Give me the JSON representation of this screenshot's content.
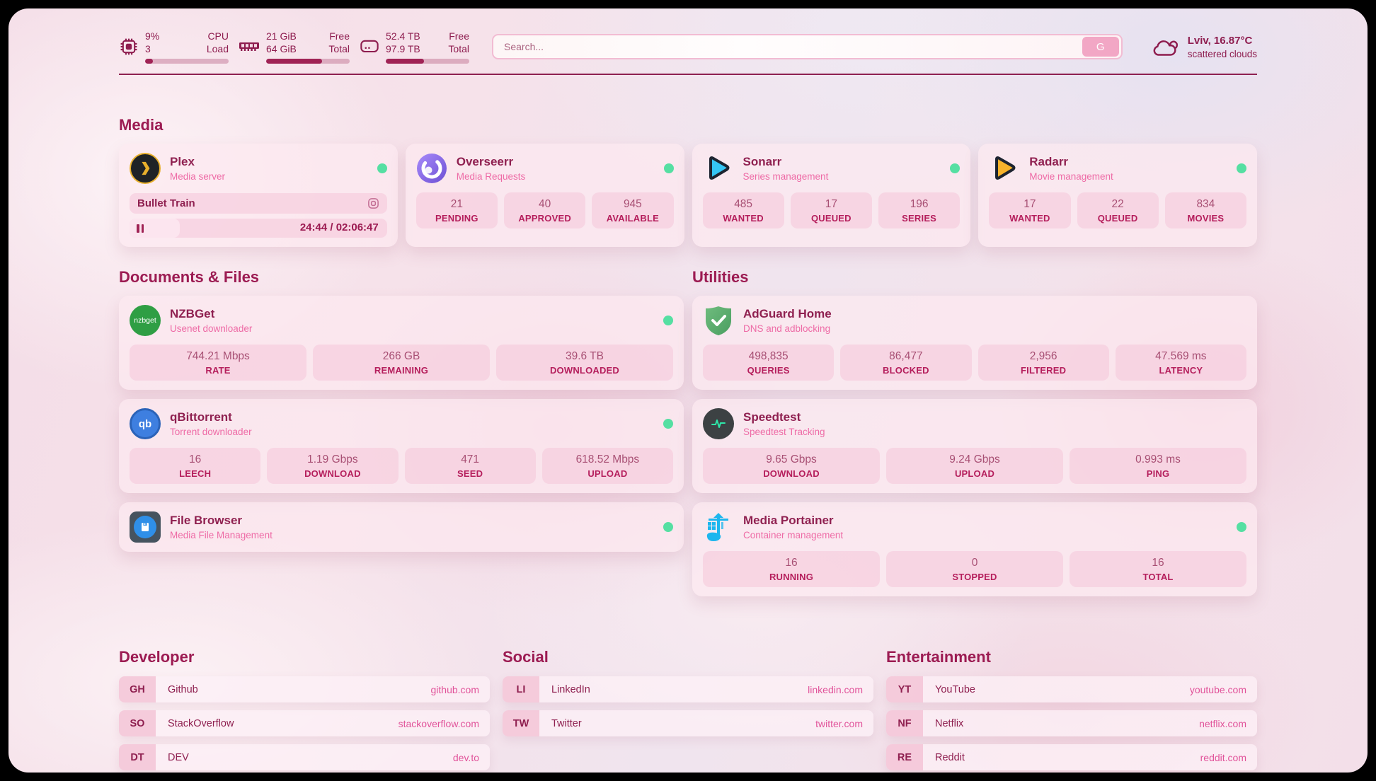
{
  "header": {
    "cpu": {
      "value": "9%",
      "secondary": "3",
      "label_top": "CPU",
      "label_bottom": "Load",
      "fill_pct": 9
    },
    "ram": {
      "value": "21 GiB",
      "secondary": "64 GiB",
      "label_top": "Free",
      "label_bottom": "Total",
      "fill_pct": 67
    },
    "disk": {
      "value": "52.4 TB",
      "secondary": "97.9 TB",
      "label_top": "Free",
      "label_bottom": "Total",
      "fill_pct": 46
    },
    "search": {
      "placeholder": "Search...",
      "button": "G"
    },
    "weather": {
      "location": "Lviv, 16.87°C",
      "condition": "scattered clouds"
    }
  },
  "sections": {
    "media": {
      "title": "Media"
    },
    "documents": {
      "title": "Documents & Files"
    },
    "utilities": {
      "title": "Utilities"
    },
    "developer": {
      "title": "Developer"
    },
    "social": {
      "title": "Social"
    },
    "entertainment": {
      "title": "Entertainment"
    }
  },
  "apps": {
    "plex": {
      "name": "Plex",
      "desc": "Media server",
      "now_playing": "Bullet Train",
      "time": "24:44 / 02:06:47",
      "progress_pct": 19.5
    },
    "overseerr": {
      "name": "Overseerr",
      "desc": "Media Requests",
      "stats": [
        {
          "value": "21",
          "label": "PENDING"
        },
        {
          "value": "40",
          "label": "APPROVED"
        },
        {
          "value": "945",
          "label": "AVAILABLE"
        }
      ]
    },
    "sonarr": {
      "name": "Sonarr",
      "desc": "Series management",
      "stats": [
        {
          "value": "485",
          "label": "WANTED"
        },
        {
          "value": "17",
          "label": "QUEUED"
        },
        {
          "value": "196",
          "label": "SERIES"
        }
      ]
    },
    "radarr": {
      "name": "Radarr",
      "desc": "Movie management",
      "stats": [
        {
          "value": "17",
          "label": "WANTED"
        },
        {
          "value": "22",
          "label": "QUEUED"
        },
        {
          "value": "834",
          "label": "MOVIES"
        }
      ]
    },
    "nzbget": {
      "name": "NZBGet",
      "desc": "Usenet downloader",
      "stats": [
        {
          "value": "744.21 Mbps",
          "label": "RATE"
        },
        {
          "value": "266 GB",
          "label": "REMAINING"
        },
        {
          "value": "39.6 TB",
          "label": "DOWNLOADED"
        }
      ]
    },
    "qbittorrent": {
      "name": "qBittorrent",
      "desc": "Torrent downloader",
      "stats": [
        {
          "value": "16",
          "label": "LEECH"
        },
        {
          "value": "1.19 Gbps",
          "label": "DOWNLOAD"
        },
        {
          "value": "471",
          "label": "SEED"
        },
        {
          "value": "618.52 Mbps",
          "label": "UPLOAD"
        }
      ]
    },
    "filebrowser": {
      "name": "File Browser",
      "desc": "Media File Management"
    },
    "adguard": {
      "name": "AdGuard Home",
      "desc": "DNS and adblocking",
      "stats": [
        {
          "value": "498,835",
          "label": "QUERIES"
        },
        {
          "value": "86,477",
          "label": "BLOCKED"
        },
        {
          "value": "2,956",
          "label": "FILTERED"
        },
        {
          "value": "47.569 ms",
          "label": "LATENCY"
        }
      ]
    },
    "speedtest": {
      "name": "Speedtest",
      "desc": "Speedtest Tracking",
      "stats": [
        {
          "value": "9.65 Gbps",
          "label": "DOWNLOAD"
        },
        {
          "value": "9.24 Gbps",
          "label": "UPLOAD"
        },
        {
          "value": "0.993 ms",
          "label": "PING"
        }
      ]
    },
    "portainer": {
      "name": "Media Portainer",
      "desc": "Container management",
      "stats": [
        {
          "value": "16",
          "label": "RUNNING"
        },
        {
          "value": "0",
          "label": "STOPPED"
        },
        {
          "value": "16",
          "label": "TOTAL"
        }
      ]
    }
  },
  "links": {
    "developer": {
      "items": [
        {
          "abbr": "GH",
          "label": "Github",
          "url": "github.com"
        },
        {
          "abbr": "SO",
          "label": "StackOverflow",
          "url": "stackoverflow.com"
        },
        {
          "abbr": "DT",
          "label": "DEV",
          "url": "dev.to"
        }
      ]
    },
    "social": {
      "items": [
        {
          "abbr": "LI",
          "label": "LinkedIn",
          "url": "linkedin.com"
        },
        {
          "abbr": "TW",
          "label": "Twitter",
          "url": "twitter.com"
        }
      ]
    },
    "entertainment": {
      "items": [
        {
          "abbr": "YT",
          "label": "YouTube",
          "url": "youtube.com"
        },
        {
          "abbr": "NF",
          "label": "Netflix",
          "url": "netflix.com"
        },
        {
          "abbr": "RE",
          "label": "Reddit",
          "url": "reddit.com"
        }
      ]
    }
  },
  "colors": {
    "accent": "#9c1b52",
    "status_online": "#55dfa2",
    "link": "#e1539a"
  }
}
